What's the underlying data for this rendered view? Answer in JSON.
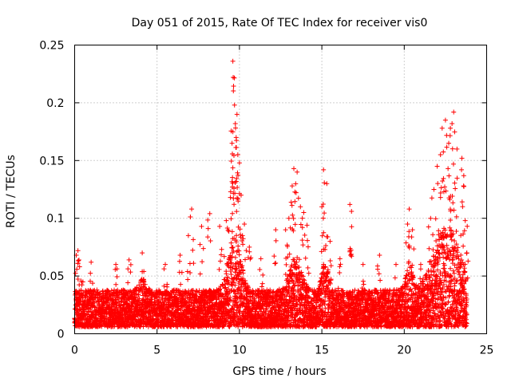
{
  "chart_data": {
    "type": "scatter",
    "title": "Day 051 of 2015, Rate Of TEC Index for receiver vis0",
    "xlabel": "GPS time / hours",
    "ylabel": "ROTI / TECUs",
    "xlim": [
      0,
      25
    ],
    "ylim": [
      0,
      0.25
    ],
    "xticks": [
      0,
      5,
      10,
      15,
      20,
      25
    ],
    "xtick_labels": [
      "0",
      "5",
      "10",
      "15",
      "20",
      "25"
    ],
    "yticks": [
      0,
      0.05,
      0.1,
      0.15,
      0.2,
      0.25
    ],
    "ytick_labels": [
      "0",
      "0.05",
      "0.1",
      "0.15",
      "0.2",
      "0.25"
    ],
    "grid": true,
    "marker": "+",
    "series": [
      {
        "name": "ROTI",
        "color": "#ff0000",
        "points": [
          [
            0.1,
            0.068
          ],
          [
            0.2,
            0.072
          ],
          [
            0.3,
            0.058
          ],
          [
            0.5,
            0.045
          ],
          [
            1.0,
            0.062
          ],
          [
            2.5,
            0.06
          ],
          [
            3.3,
            0.064
          ],
          [
            4.1,
            0.07
          ],
          [
            5.5,
            0.06
          ],
          [
            6.4,
            0.068
          ],
          [
            6.9,
            0.085
          ],
          [
            7.1,
            0.108
          ],
          [
            7.7,
            0.093
          ],
          [
            8.2,
            0.104
          ],
          [
            8.8,
            0.093
          ],
          [
            9.2,
            0.098
          ],
          [
            9.45,
            0.118
          ],
          [
            9.55,
            0.165
          ],
          [
            9.6,
            0.236
          ],
          [
            9.62,
            0.222
          ],
          [
            9.7,
            0.198
          ],
          [
            9.75,
            0.182
          ],
          [
            9.8,
            0.17
          ],
          [
            9.85,
            0.19
          ],
          [
            9.9,
            0.155
          ],
          [
            10.0,
            0.148
          ],
          [
            10.1,
            0.12
          ],
          [
            10.3,
            0.095
          ],
          [
            10.6,
            0.075
          ],
          [
            11.3,
            0.065
          ],
          [
            12.2,
            0.09
          ],
          [
            12.8,
            0.09
          ],
          [
            13.0,
            0.1
          ],
          [
            13.2,
            0.128
          ],
          [
            13.3,
            0.143
          ],
          [
            13.5,
            0.14
          ],
          [
            13.7,
            0.11
          ],
          [
            13.9,
            0.105
          ],
          [
            14.1,
            0.094
          ],
          [
            15.0,
            0.11
          ],
          [
            15.1,
            0.142
          ],
          [
            15.3,
            0.13
          ],
          [
            15.5,
            0.08
          ],
          [
            16.1,
            0.065
          ],
          [
            16.7,
            0.112
          ],
          [
            16.8,
            0.106
          ],
          [
            17.5,
            0.06
          ],
          [
            18.5,
            0.068
          ],
          [
            19.5,
            0.06
          ],
          [
            20.2,
            0.095
          ],
          [
            20.3,
            0.108
          ],
          [
            20.5,
            0.09
          ],
          [
            21.0,
            0.06
          ],
          [
            21.6,
            0.1
          ],
          [
            21.8,
            0.125
          ],
          [
            22.0,
            0.145
          ],
          [
            22.2,
            0.155
          ],
          [
            22.3,
            0.178
          ],
          [
            22.5,
            0.185
          ],
          [
            22.7,
            0.165
          ],
          [
            22.8,
            0.178
          ],
          [
            22.9,
            0.182
          ],
          [
            23.0,
            0.192
          ],
          [
            23.2,
            0.16
          ],
          [
            23.5,
            0.152
          ],
          [
            23.6,
            0.128
          ],
          [
            23.7,
            0.098
          ],
          [
            23.8,
            0.07
          ]
        ]
      }
    ]
  }
}
